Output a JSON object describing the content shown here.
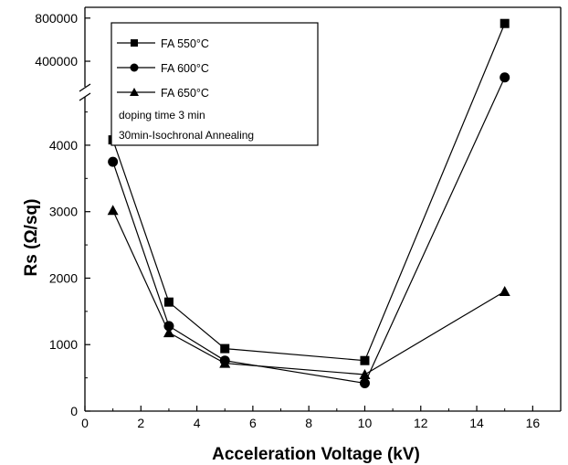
{
  "chart_data": {
    "type": "line",
    "title": "",
    "xlabel": "Acceleration Voltage (kV)",
    "ylabel": "Rs (Ω/sq)",
    "xlim": [
      0,
      17
    ],
    "ylim": [
      0,
      4700
    ],
    "ylim_upper_broken_segment": [
      180000,
      900000
    ],
    "axis_break": true,
    "x_ticks": [
      0,
      2,
      4,
      6,
      8,
      10,
      12,
      14,
      16
    ],
    "y_ticks": [
      0,
      1000,
      2000,
      3000,
      4000
    ],
    "y_ticks_upper": [
      400000,
      800000
    ],
    "grid": false,
    "legend_position": "top-left",
    "series": [
      {
        "name": "FA 550°C",
        "marker": "square",
        "x": [
          1,
          3,
          5,
          10,
          15
        ],
        "y": [
          4080,
          1640,
          940,
          760,
          750000
        ]
      },
      {
        "name": "FA 600°C",
        "marker": "circle",
        "x": [
          1,
          3,
          5,
          10,
          15
        ],
        "y": [
          3750,
          1280,
          760,
          420,
          250000
        ]
      },
      {
        "name": "FA 650°C",
        "marker": "triangle",
        "x": [
          1,
          3,
          5,
          10,
          15
        ],
        "y": [
          3020,
          1180,
          720,
          550,
          1800
        ]
      }
    ],
    "annotations": [
      "doping time 3 min",
      "30min-Isochronal Annealing"
    ]
  }
}
